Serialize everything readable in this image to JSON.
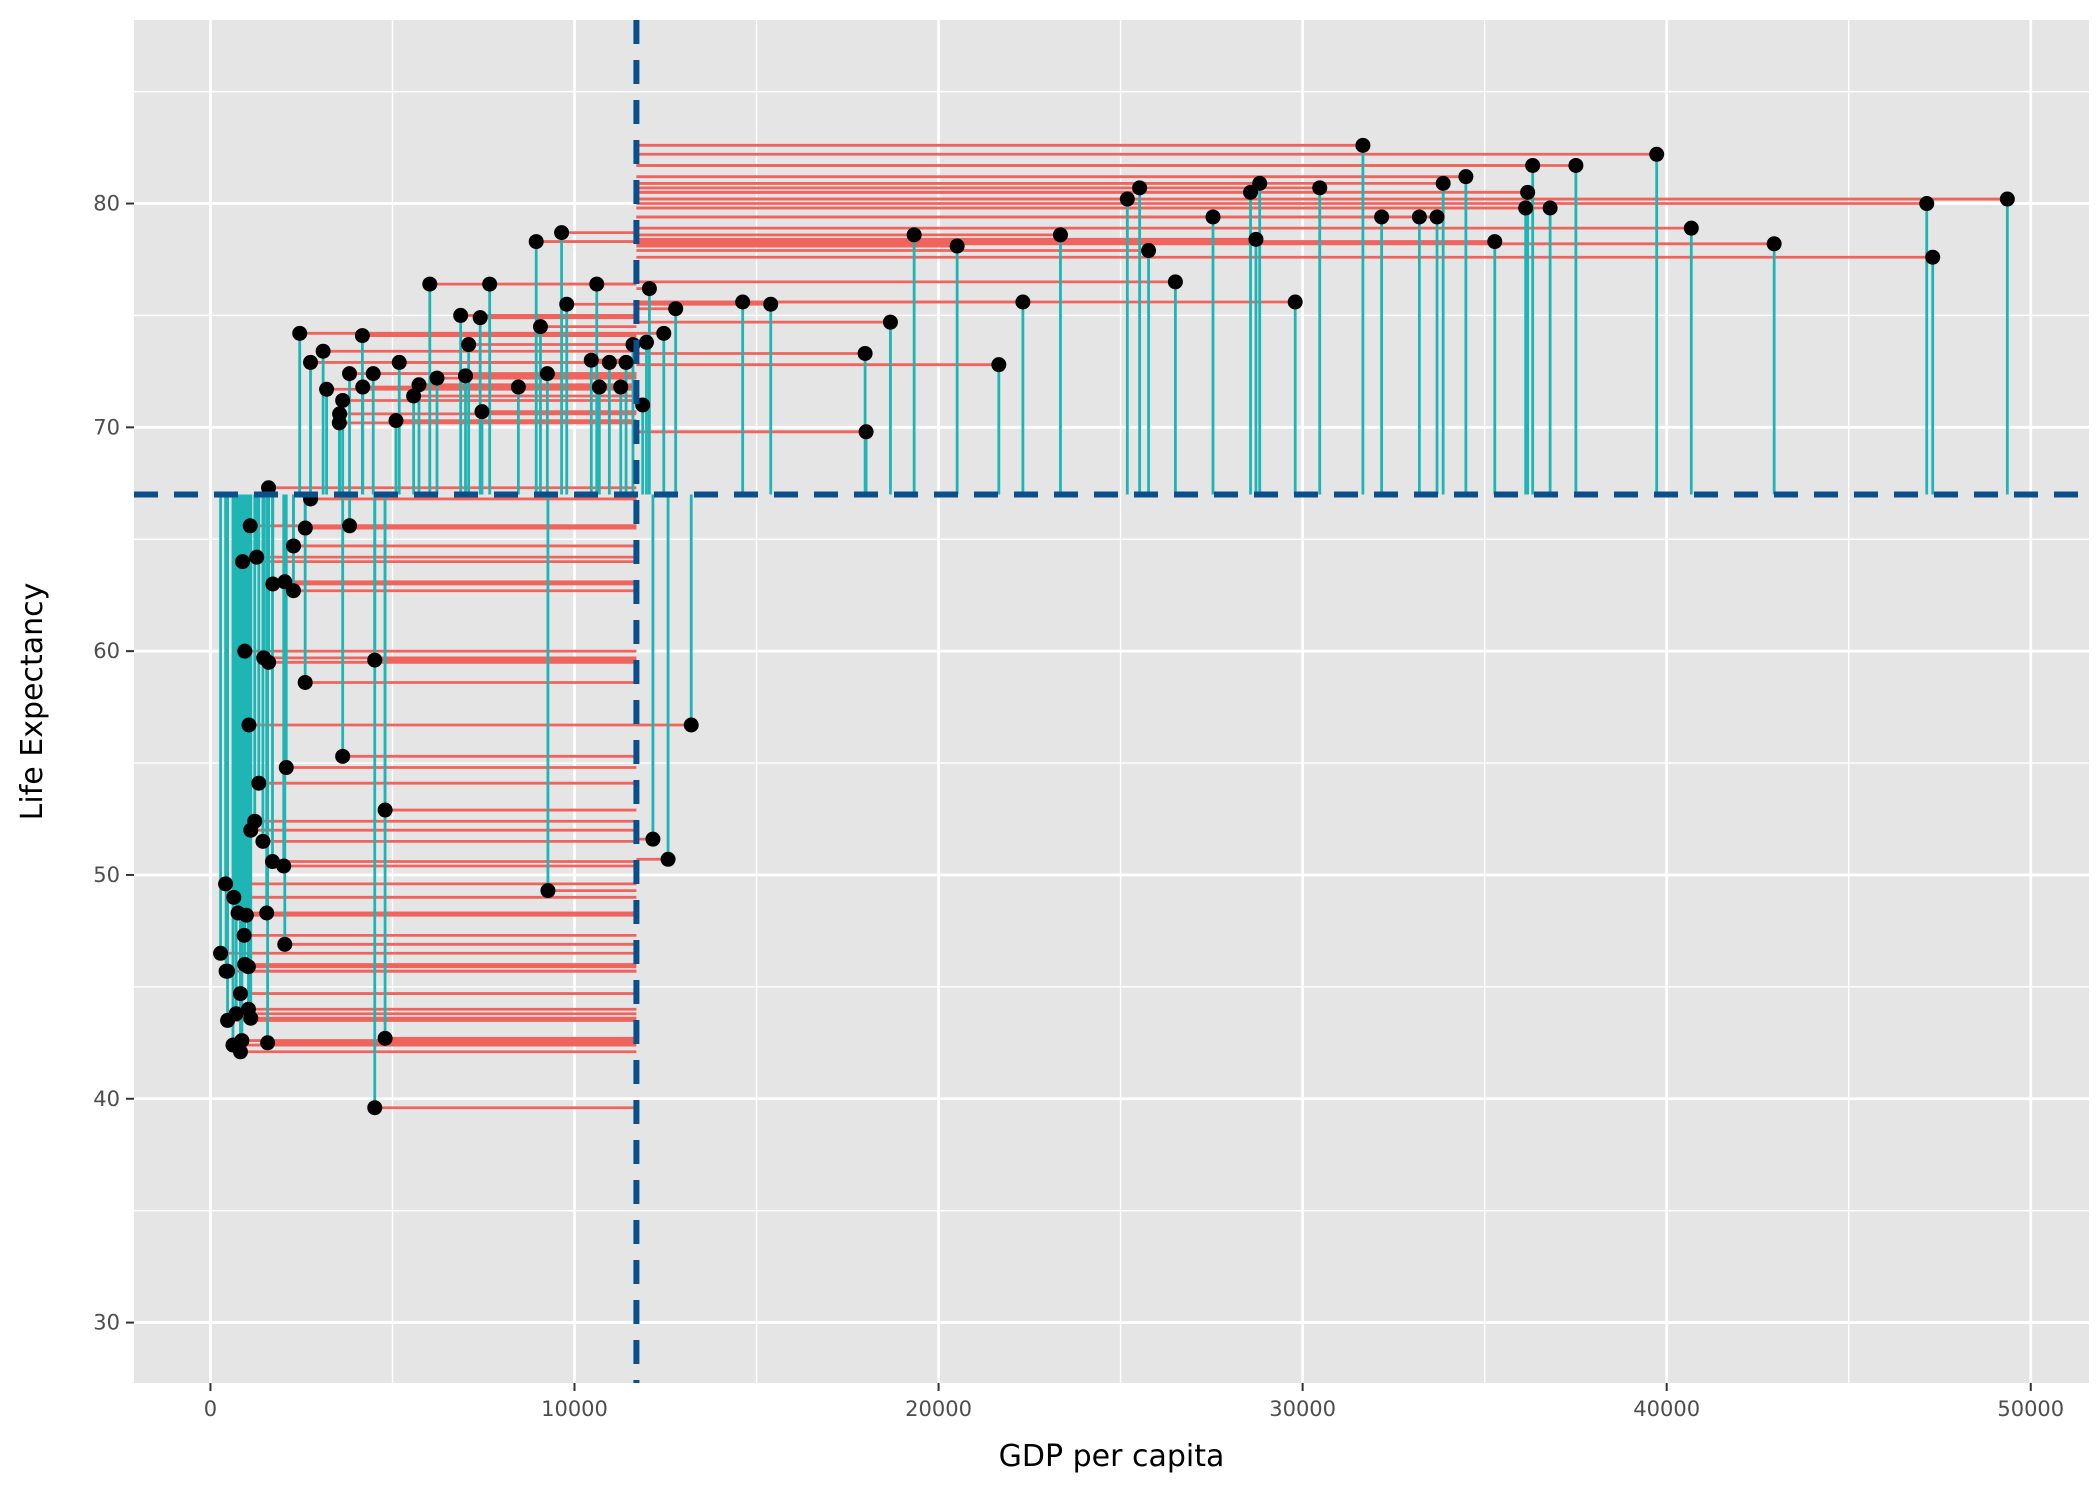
{
  "chart_data": {
    "type": "scatter",
    "title": "",
    "xlabel": "GDP per capita",
    "ylabel": "Life Expectancy",
    "xlim": [
      -2100,
      51600
    ],
    "ylim": [
      27.3,
      88.2
    ],
    "x_ticks": [
      0,
      10000,
      20000,
      30000,
      40000,
      50000
    ],
    "x_tick_labels": [
      "0",
      "10000",
      "20000",
      "30000",
      "40000",
      "50000"
    ],
    "y_ticks": [
      30,
      40,
      50,
      60,
      70,
      80
    ],
    "y_tick_labels": [
      "30",
      "40",
      "50",
      "60",
      "70",
      "80"
    ],
    "grid": true,
    "reference_lines": {
      "x_mean": 11700,
      "y_mean": 67.0
    },
    "colors": {
      "panel": "#e5e5e5",
      "grid": "#ffffff",
      "point": "#000000",
      "x_segment": "#f0645e",
      "y_segment": "#1fb5b5",
      "reference_line": "#0b4f8a"
    },
    "points": [
      [
        31656,
        82.6
      ],
      [
        39725,
        82.2
      ],
      [
        36319,
        81.7
      ],
      [
        37506,
        81.7
      ],
      [
        34484,
        81.2
      ],
      [
        33860,
        80.9
      ],
      [
        28821,
        80.9
      ],
      [
        25523,
        80.7
      ],
      [
        30470,
        80.7
      ],
      [
        36181,
        80.5
      ],
      [
        49357,
        80.2
      ],
      [
        47143,
        80.0
      ],
      [
        25185,
        80.2
      ],
      [
        28569,
        80.5
      ],
      [
        36126,
        79.8
      ],
      [
        36798,
        79.8
      ],
      [
        32170,
        79.4
      ],
      [
        33207,
        79.4
      ],
      [
        33692,
        79.4
      ],
      [
        27538,
        79.4
      ],
      [
        40676,
        78.9
      ],
      [
        19329,
        78.6
      ],
      [
        23348,
        78.6
      ],
      [
        28718,
        78.4
      ],
      [
        42952,
        78.2
      ],
      [
        35278,
        78.3
      ],
      [
        20510,
        78.1
      ],
      [
        25768,
        77.9
      ],
      [
        47307,
        77.6
      ],
      [
        9645,
        78.7
      ],
      [
        8948,
        78.3
      ],
      [
        29796,
        75.6
      ],
      [
        26505,
        76.5
      ],
      [
        22316,
        75.6
      ],
      [
        18678,
        74.7
      ],
      [
        14619,
        75.6
      ],
      [
        15390,
        75.5
      ],
      [
        12779,
        75.3
      ],
      [
        12057,
        76.2
      ],
      [
        10611,
        76.4
      ],
      [
        7670,
        76.4
      ],
      [
        6025,
        76.4
      ],
      [
        9786,
        75.5
      ],
      [
        6873,
        75.0
      ],
      [
        7409,
        74.9
      ],
      [
        9065,
        74.5
      ],
      [
        4173,
        74.1
      ],
      [
        2452,
        74.2
      ],
      [
        12452,
        74.2
      ],
      [
        11977,
        73.8
      ],
      [
        11606,
        73.7
      ],
      [
        7092,
        73.7
      ],
      [
        3095,
        73.4
      ],
      [
        2749,
        72.9
      ],
      [
        5186,
        72.9
      ],
      [
        10957,
        72.9
      ],
      [
        11416,
        72.9
      ],
      [
        10461,
        73.0
      ],
      [
        17982,
        73.3
      ],
      [
        21655,
        72.8
      ],
      [
        4471,
        72.4
      ],
      [
        3820,
        72.4
      ],
      [
        6223,
        72.2
      ],
      [
        7006,
        72.3
      ],
      [
        9254,
        72.4
      ],
      [
        3190,
        71.7
      ],
      [
        4184,
        71.8
      ],
      [
        5728,
        71.9
      ],
      [
        8458,
        71.8
      ],
      [
        10682,
        71.8
      ],
      [
        11270,
        71.8
      ],
      [
        3632,
        71.2
      ],
      [
        5581,
        71.4
      ],
      [
        7458,
        70.7
      ],
      [
        3548,
        70.6
      ],
      [
        3540,
        70.2
      ],
      [
        5097,
        70.3
      ],
      [
        11872,
        71.0
      ],
      [
        18009,
        69.8
      ],
      [
        2605,
        65.5
      ],
      [
        2281,
        64.7
      ],
      [
        2749,
        66.8
      ],
      [
        3822,
        65.6
      ],
      [
        1596,
        67.3
      ],
      [
        1270,
        64.2
      ],
      [
        2042,
        63.1
      ],
      [
        1713,
        63.0
      ],
      [
        2280,
        62.7
      ],
      [
        883,
        64.0
      ],
      [
        1091,
        65.6
      ],
      [
        1598,
        59.5
      ],
      [
        2602,
        58.6
      ],
      [
        1463,
        59.7
      ],
      [
        4513,
        59.6
      ],
      [
        943,
        60.0
      ],
      [
        1057,
        56.7
      ],
      [
        13206,
        56.7
      ],
      [
        3632,
        55.3
      ],
      [
        2082,
        54.8
      ],
      [
        1328,
        54.1
      ],
      [
        4797,
        52.9
      ],
      [
        1107,
        52.0
      ],
      [
        1217,
        52.4
      ],
      [
        12154,
        51.6
      ],
      [
        12570,
        50.7
      ],
      [
        1441,
        51.5
      ],
      [
        1704,
        50.6
      ],
      [
        2013,
        50.4
      ],
      [
        9270,
        49.3
      ],
      [
        416,
        49.6
      ],
      [
        759,
        48.3
      ],
      [
        986,
        48.2
      ],
      [
        1545,
        48.3
      ],
      [
        641,
        49.0
      ],
      [
        926,
        47.3
      ],
      [
        2042,
        46.9
      ],
      [
        278,
        46.5
      ],
      [
        469,
        45.7
      ],
      [
        943,
        46.0
      ],
      [
        1041,
        45.9
      ],
      [
        430,
        45.7
      ],
      [
        824,
        44.7
      ],
      [
        1044,
        44.0
      ],
      [
        706,
        43.8
      ],
      [
        1107,
        43.6
      ],
      [
        470,
        43.5
      ],
      [
        863,
        42.6
      ],
      [
        619,
        42.4
      ],
      [
        1570,
        42.5
      ],
      [
        4797,
        42.7
      ],
      [
        824,
        42.1
      ],
      [
        4513,
        39.6
      ]
    ]
  }
}
